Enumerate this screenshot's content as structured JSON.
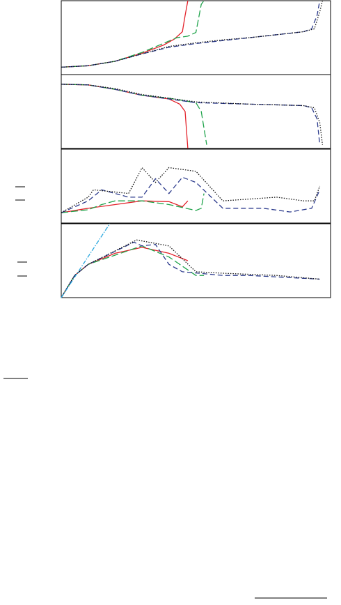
{
  "chart_data": [
    {
      "type": "line",
      "xlim": [
        0,
        1
      ],
      "ylim": [
        0,
        1
      ],
      "series": [
        {
          "color": "#e3222b",
          "style": "solid",
          "x": [
            0,
            0.1,
            0.2,
            0.3,
            0.38,
            0.42,
            0.45,
            0.46,
            0.47
          ],
          "values": [
            0.1,
            0.12,
            0.18,
            0.29,
            0.4,
            0.48,
            0.58,
            0.8,
            1.0
          ]
        },
        {
          "color": "#1ea34a",
          "style": "longdash",
          "x": [
            0,
            0.1,
            0.2,
            0.3,
            0.43,
            0.47,
            0.5,
            0.52,
            0.53
          ],
          "values": [
            0.1,
            0.12,
            0.18,
            0.3,
            0.5,
            0.52,
            0.57,
            0.95,
            1.0
          ]
        },
        {
          "color": "#2b3a8c",
          "style": "dashed",
          "x": [
            0,
            0.1,
            0.2,
            0.3,
            0.4,
            0.5,
            0.6,
            0.7,
            0.8,
            0.9,
            0.93,
            0.95,
            0.96
          ],
          "values": [
            0.1,
            0.12,
            0.18,
            0.28,
            0.37,
            0.42,
            0.46,
            0.5,
            0.54,
            0.58,
            0.62,
            0.8,
            1.0
          ]
        },
        {
          "color": "#111111",
          "style": "dotted",
          "x": [
            0,
            0.1,
            0.2,
            0.3,
            0.4,
            0.5,
            0.6,
            0.7,
            0.8,
            0.9,
            0.94,
            0.96,
            0.97
          ],
          "values": [
            0.1,
            0.12,
            0.18,
            0.28,
            0.38,
            0.43,
            0.47,
            0.5,
            0.54,
            0.58,
            0.62,
            0.85,
            1.0
          ]
        }
      ]
    },
    {
      "type": "line",
      "xlim": [
        0,
        1
      ],
      "ylim": [
        0,
        1
      ],
      "series": [
        {
          "color": "#e3222b",
          "style": "solid",
          "x": [
            0,
            0.1,
            0.2,
            0.3,
            0.4,
            0.44,
            0.46,
            0.47
          ],
          "values": [
            0.87,
            0.86,
            0.8,
            0.72,
            0.67,
            0.6,
            0.5,
            0.0
          ]
        },
        {
          "color": "#1ea34a",
          "style": "longdash",
          "x": [
            0,
            0.1,
            0.2,
            0.3,
            0.4,
            0.5,
            0.52,
            0.54
          ],
          "values": [
            0.87,
            0.86,
            0.8,
            0.72,
            0.68,
            0.62,
            0.5,
            0.05
          ]
        },
        {
          "color": "#2b3a8c",
          "style": "dashed",
          "x": [
            0,
            0.1,
            0.2,
            0.3,
            0.5,
            0.7,
            0.9,
            0.93,
            0.95,
            0.96
          ],
          "values": [
            0.87,
            0.86,
            0.8,
            0.72,
            0.62,
            0.6,
            0.58,
            0.55,
            0.4,
            0.05
          ]
        },
        {
          "color": "#111111",
          "style": "dotted",
          "x": [
            0,
            0.1,
            0.2,
            0.3,
            0.5,
            0.7,
            0.9,
            0.94,
            0.96,
            0.97
          ],
          "values": [
            0.87,
            0.86,
            0.81,
            0.73,
            0.63,
            0.6,
            0.58,
            0.55,
            0.35,
            0.05
          ]
        }
      ]
    },
    {
      "type": "line",
      "xlim": [
        0,
        1
      ],
      "ylim": [
        0,
        1
      ],
      "series": [
        {
          "color": "#e3222b",
          "style": "solid",
          "x": [
            0,
            0.1,
            0.2,
            0.3,
            0.4,
            0.45,
            0.47
          ],
          "values": [
            0.14,
            0.2,
            0.25,
            0.3,
            0.29,
            0.22,
            0.3
          ]
        },
        {
          "color": "#1ea34a",
          "style": "longdash",
          "x": [
            0,
            0.1,
            0.15,
            0.2,
            0.3,
            0.4,
            0.5,
            0.52,
            0.53
          ],
          "values": [
            0.14,
            0.18,
            0.25,
            0.3,
            0.3,
            0.25,
            0.17,
            0.2,
            0.4
          ]
        },
        {
          "color": "#2b3a8c",
          "style": "dashed",
          "x": [
            0,
            0.1,
            0.15,
            0.2,
            0.25,
            0.3,
            0.35,
            0.4,
            0.45,
            0.5,
            0.6,
            0.75,
            0.85,
            0.93,
            0.96
          ],
          "values": [
            0.14,
            0.3,
            0.45,
            0.4,
            0.35,
            0.35,
            0.6,
            0.4,
            0.62,
            0.55,
            0.2,
            0.2,
            0.15,
            0.2,
            0.45
          ]
        },
        {
          "color": "#111111",
          "style": "dotted",
          "x": [
            0,
            0.1,
            0.12,
            0.25,
            0.3,
            0.35,
            0.4,
            0.5,
            0.6,
            0.8,
            0.9,
            0.94,
            0.96
          ],
          "values": [
            0.14,
            0.35,
            0.45,
            0.4,
            0.75,
            0.55,
            0.75,
            0.7,
            0.3,
            0.35,
            0.3,
            0.3,
            0.5
          ]
        }
      ]
    },
    {
      "type": "line",
      "xlim": [
        0,
        1
      ],
      "ylim": [
        0,
        1
      ],
      "series": [
        {
          "color": "#e3222b",
          "style": "solid",
          "x": [
            0,
            0.05,
            0.1,
            0.2,
            0.3,
            0.4,
            0.47
          ],
          "values": [
            0,
            0.3,
            0.45,
            0.6,
            0.68,
            0.6,
            0.5
          ]
        },
        {
          "color": "#1ea34a",
          "style": "longdash",
          "x": [
            0,
            0.05,
            0.1,
            0.3,
            0.4,
            0.5,
            0.53
          ],
          "values": [
            0,
            0.3,
            0.45,
            0.7,
            0.55,
            0.3,
            0.3
          ]
        },
        {
          "color": "#2b3a8c",
          "style": "dashed",
          "x": [
            0,
            0.05,
            0.1,
            0.27,
            0.3,
            0.35,
            0.4,
            0.45,
            0.6,
            0.7,
            0.8,
            0.96
          ],
          "values": [
            0,
            0.3,
            0.45,
            0.75,
            0.7,
            0.72,
            0.45,
            0.35,
            0.3,
            0.3,
            0.28,
            0.25
          ]
        },
        {
          "color": "#111111",
          "style": "dotted",
          "x": [
            0,
            0.05,
            0.1,
            0.28,
            0.4,
            0.5,
            0.6,
            0.8,
            0.96
          ],
          "values": [
            0,
            0.3,
            0.45,
            0.78,
            0.7,
            0.35,
            0.33,
            0.3,
            0.25
          ]
        },
        {
          "color": "#2aa8df",
          "style": "dashdot",
          "x": [
            0,
            0.18
          ],
          "values": [
            0,
            1.0
          ]
        }
      ]
    }
  ]
}
